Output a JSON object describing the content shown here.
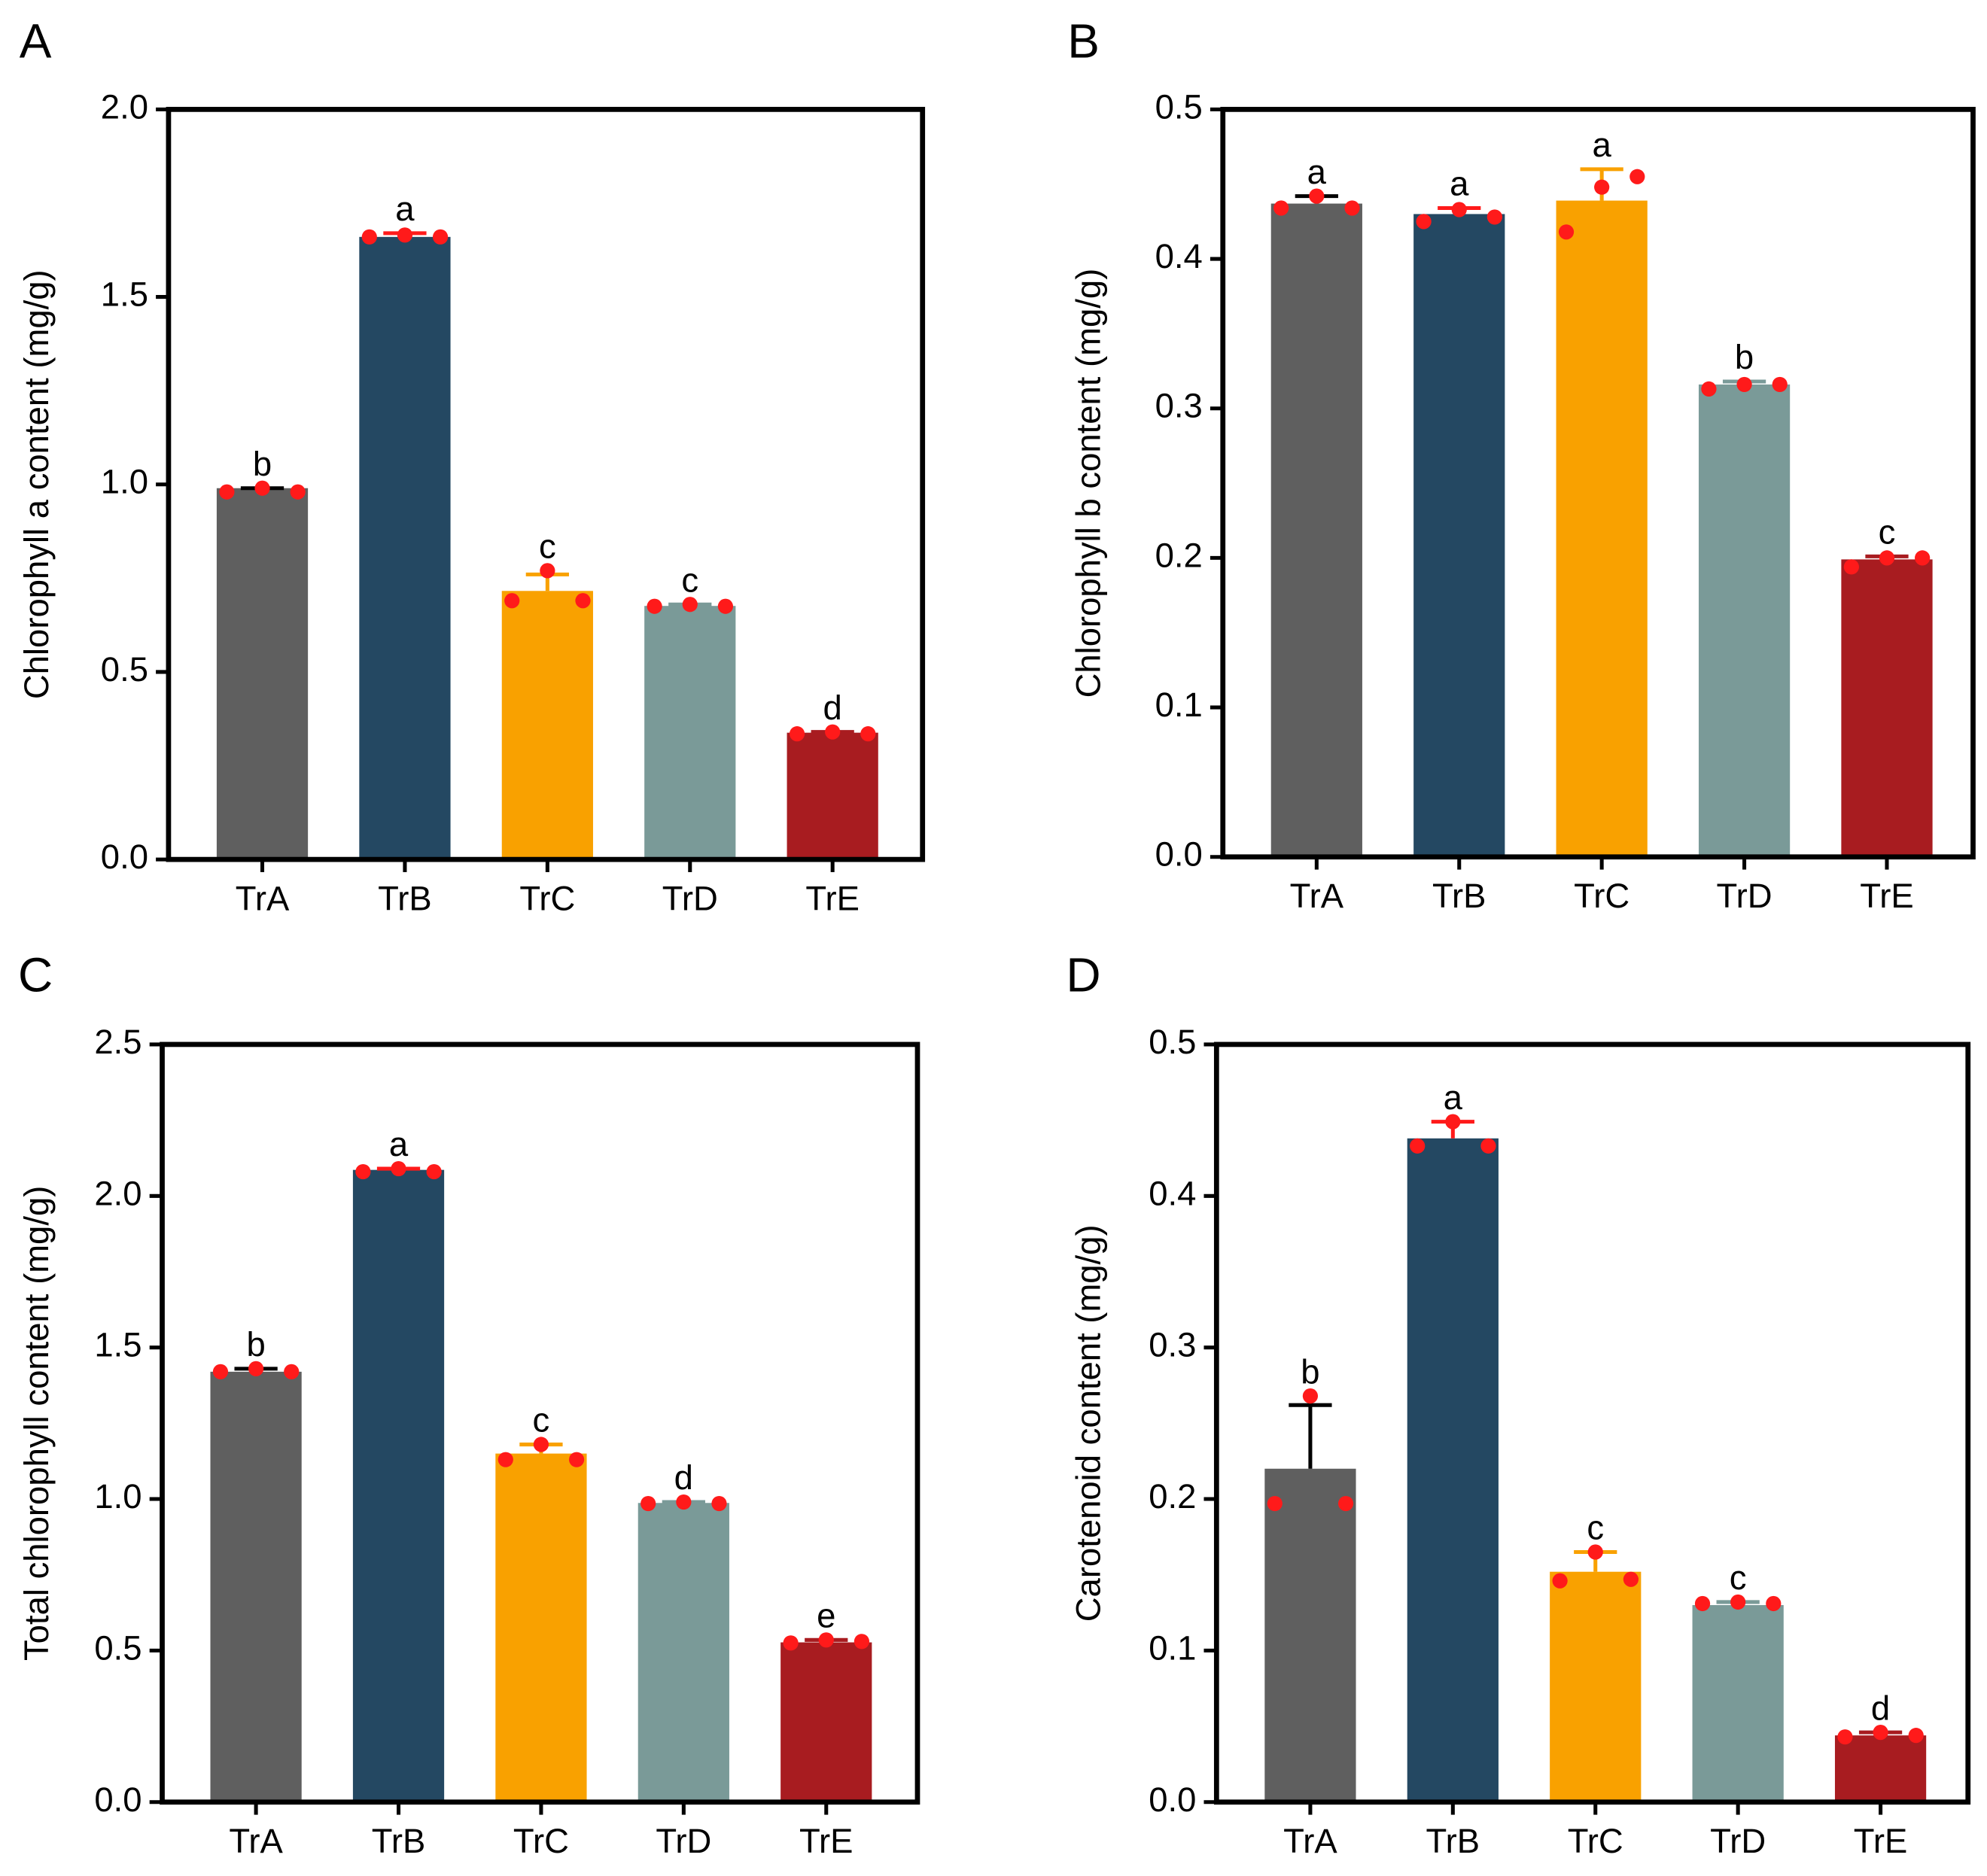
{
  "colors": {
    "TrA": "#5f5f5f",
    "TrB": "#244862",
    "TrC": "#f9a100",
    "TrD": "#7a9a98",
    "TrE": "#a81c20",
    "points": "#ff1a1a",
    "error_TrA": "#000000",
    "error_TrB": "#ff1a1a",
    "error_TrC": "#f9a100"
  },
  "chart_data": [
    {
      "type": "bar",
      "panel_label": "A",
      "ylabel": "Chlorophyll a content (mg/g)",
      "ylim": [
        0,
        2.0
      ],
      "yticks": [
        "0.0",
        "0.5",
        "1.0",
        "1.5",
        "2.0"
      ],
      "ytick_values": [
        0,
        0.5,
        1.0,
        1.5,
        2.0
      ],
      "categories": [
        "TrA",
        "TrB",
        "TrC",
        "TrD",
        "TrE"
      ],
      "values": [
        0.99,
        1.66,
        0.716,
        0.676,
        0.338
      ],
      "error_upper": [
        0.99,
        1.67,
        0.76,
        0.68,
        0.34
      ],
      "points": [
        [
          0.98,
          0.99,
          0.98
        ],
        [
          1.66,
          1.665,
          1.66
        ],
        [
          0.69,
          0.77,
          0.69
        ],
        [
          0.675,
          0.68,
          0.675
        ],
        [
          0.335,
          0.34,
          0.335
        ]
      ],
      "significance": [
        "b",
        "a",
        "c",
        "c",
        "d"
      ]
    },
    {
      "type": "bar",
      "panel_label": "B",
      "ylabel": "Chlorophyll b content (mg/g)",
      "ylim": [
        0,
        0.5
      ],
      "yticks": [
        "0.0",
        "0.1",
        "0.2",
        "0.3",
        "0.4",
        "0.5"
      ],
      "ytick_values": [
        0,
        0.1,
        0.2,
        0.3,
        0.4,
        0.5
      ],
      "categories": [
        "TrA",
        "TrB",
        "TrC",
        "TrD",
        "TrE"
      ],
      "values": [
        0.437,
        0.43,
        0.439,
        0.316,
        0.199
      ],
      "error_upper": [
        0.442,
        0.434,
        0.46,
        0.318,
        0.201
      ],
      "points": [
        [
          0.434,
          0.442,
          0.434
        ],
        [
          0.425,
          0.433,
          0.428
        ],
        [
          0.418,
          0.448,
          0.455
        ],
        [
          0.313,
          0.316,
          0.316
        ],
        [
          0.194,
          0.2,
          0.2
        ]
      ],
      "significance": [
        "a",
        "a",
        "a",
        "b",
        "c"
      ]
    },
    {
      "type": "bar",
      "panel_label": "C",
      "ylabel": "Total chlorophyll content (mg/g)",
      "ylim": [
        0,
        2.5
      ],
      "yticks": [
        "0.0",
        "0.5",
        "1.0",
        "1.5",
        "2.0",
        "2.5"
      ],
      "ytick_values": [
        0,
        0.5,
        1.0,
        1.5,
        2.0,
        2.5
      ],
      "categories": [
        "TrA",
        "TrB",
        "TrC",
        "TrD",
        "TrE"
      ],
      "values": [
        1.42,
        2.086,
        1.15,
        0.987,
        0.527
      ],
      "error_upper": [
        1.43,
        2.09,
        1.18,
        0.99,
        0.535
      ],
      "points": [
        [
          1.42,
          1.43,
          1.42
        ],
        [
          2.08,
          2.09,
          2.08
        ],
        [
          1.13,
          1.18,
          1.13
        ],
        [
          0.985,
          0.99,
          0.985
        ],
        [
          0.525,
          0.535,
          0.53
        ]
      ],
      "significance": [
        "b",
        "a",
        "c",
        "d",
        "e"
      ]
    },
    {
      "type": "bar",
      "panel_label": "D",
      "ylabel": "Carotenoid content (mg/g)",
      "ylim": [
        0,
        0.5
      ],
      "yticks": [
        "0.0",
        "0.1",
        "0.2",
        "0.3",
        "0.4",
        "0.5"
      ],
      "ytick_values": [
        0,
        0.1,
        0.2,
        0.3,
        0.4,
        0.5
      ],
      "categories": [
        "TrA",
        "TrB",
        "TrC",
        "TrD",
        "TrE"
      ],
      "values": [
        0.22,
        0.438,
        0.152,
        0.13,
        0.044
      ],
      "error_upper": [
        0.262,
        0.449,
        0.165,
        0.132,
        0.046
      ],
      "points": [
        [
          0.197,
          0.268,
          0.197
        ],
        [
          0.433,
          0.449,
          0.433
        ],
        [
          0.146,
          0.165,
          0.147
        ],
        [
          0.131,
          0.132,
          0.131
        ],
        [
          0.043,
          0.046,
          0.044
        ]
      ],
      "significance": [
        "b",
        "a",
        "c",
        "c",
        "d"
      ]
    }
  ]
}
